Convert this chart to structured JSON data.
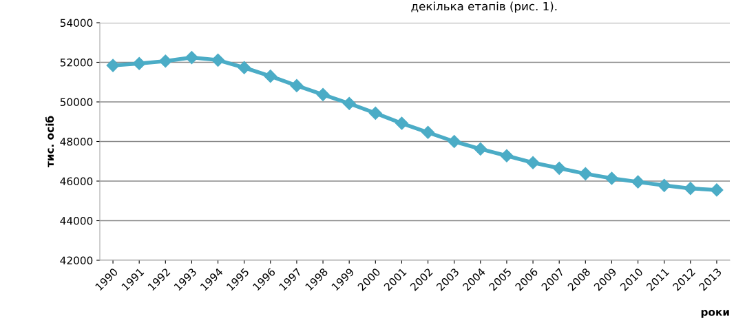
{
  "chart_data": {
    "type": "line",
    "categories": [
      "1990",
      "1991",
      "1992",
      "1993",
      "1994",
      "1995",
      "1996",
      "1997",
      "1998",
      "1999",
      "2000",
      "2001",
      "2002",
      "2003",
      "2004",
      "2005",
      "2006",
      "2007",
      "2008",
      "2009",
      "2010",
      "2011",
      "2012",
      "2013"
    ],
    "series": [
      {
        "color": "#4bacc6",
        "values": [
          51840,
          51940,
          52060,
          52240,
          52110,
          51730,
          51300,
          50820,
          50370,
          49920,
          49430,
          48920,
          48460,
          48000,
          47620,
          47280,
          46930,
          46650,
          46370,
          46140,
          45960,
          45780,
          45630,
          45550
        ]
      }
    ],
    "ylim": [
      42000,
      54000
    ],
    "yticks": [
      42000,
      44000,
      46000,
      48000,
      50000,
      52000,
      54000
    ],
    "ylabel": "тис. осіб",
    "xlabel": "роки",
    "grid": "y",
    "marker": "diamond",
    "line_style": "solid",
    "annotations": [
      "декілька етапів (рис. 1)."
    ]
  }
}
